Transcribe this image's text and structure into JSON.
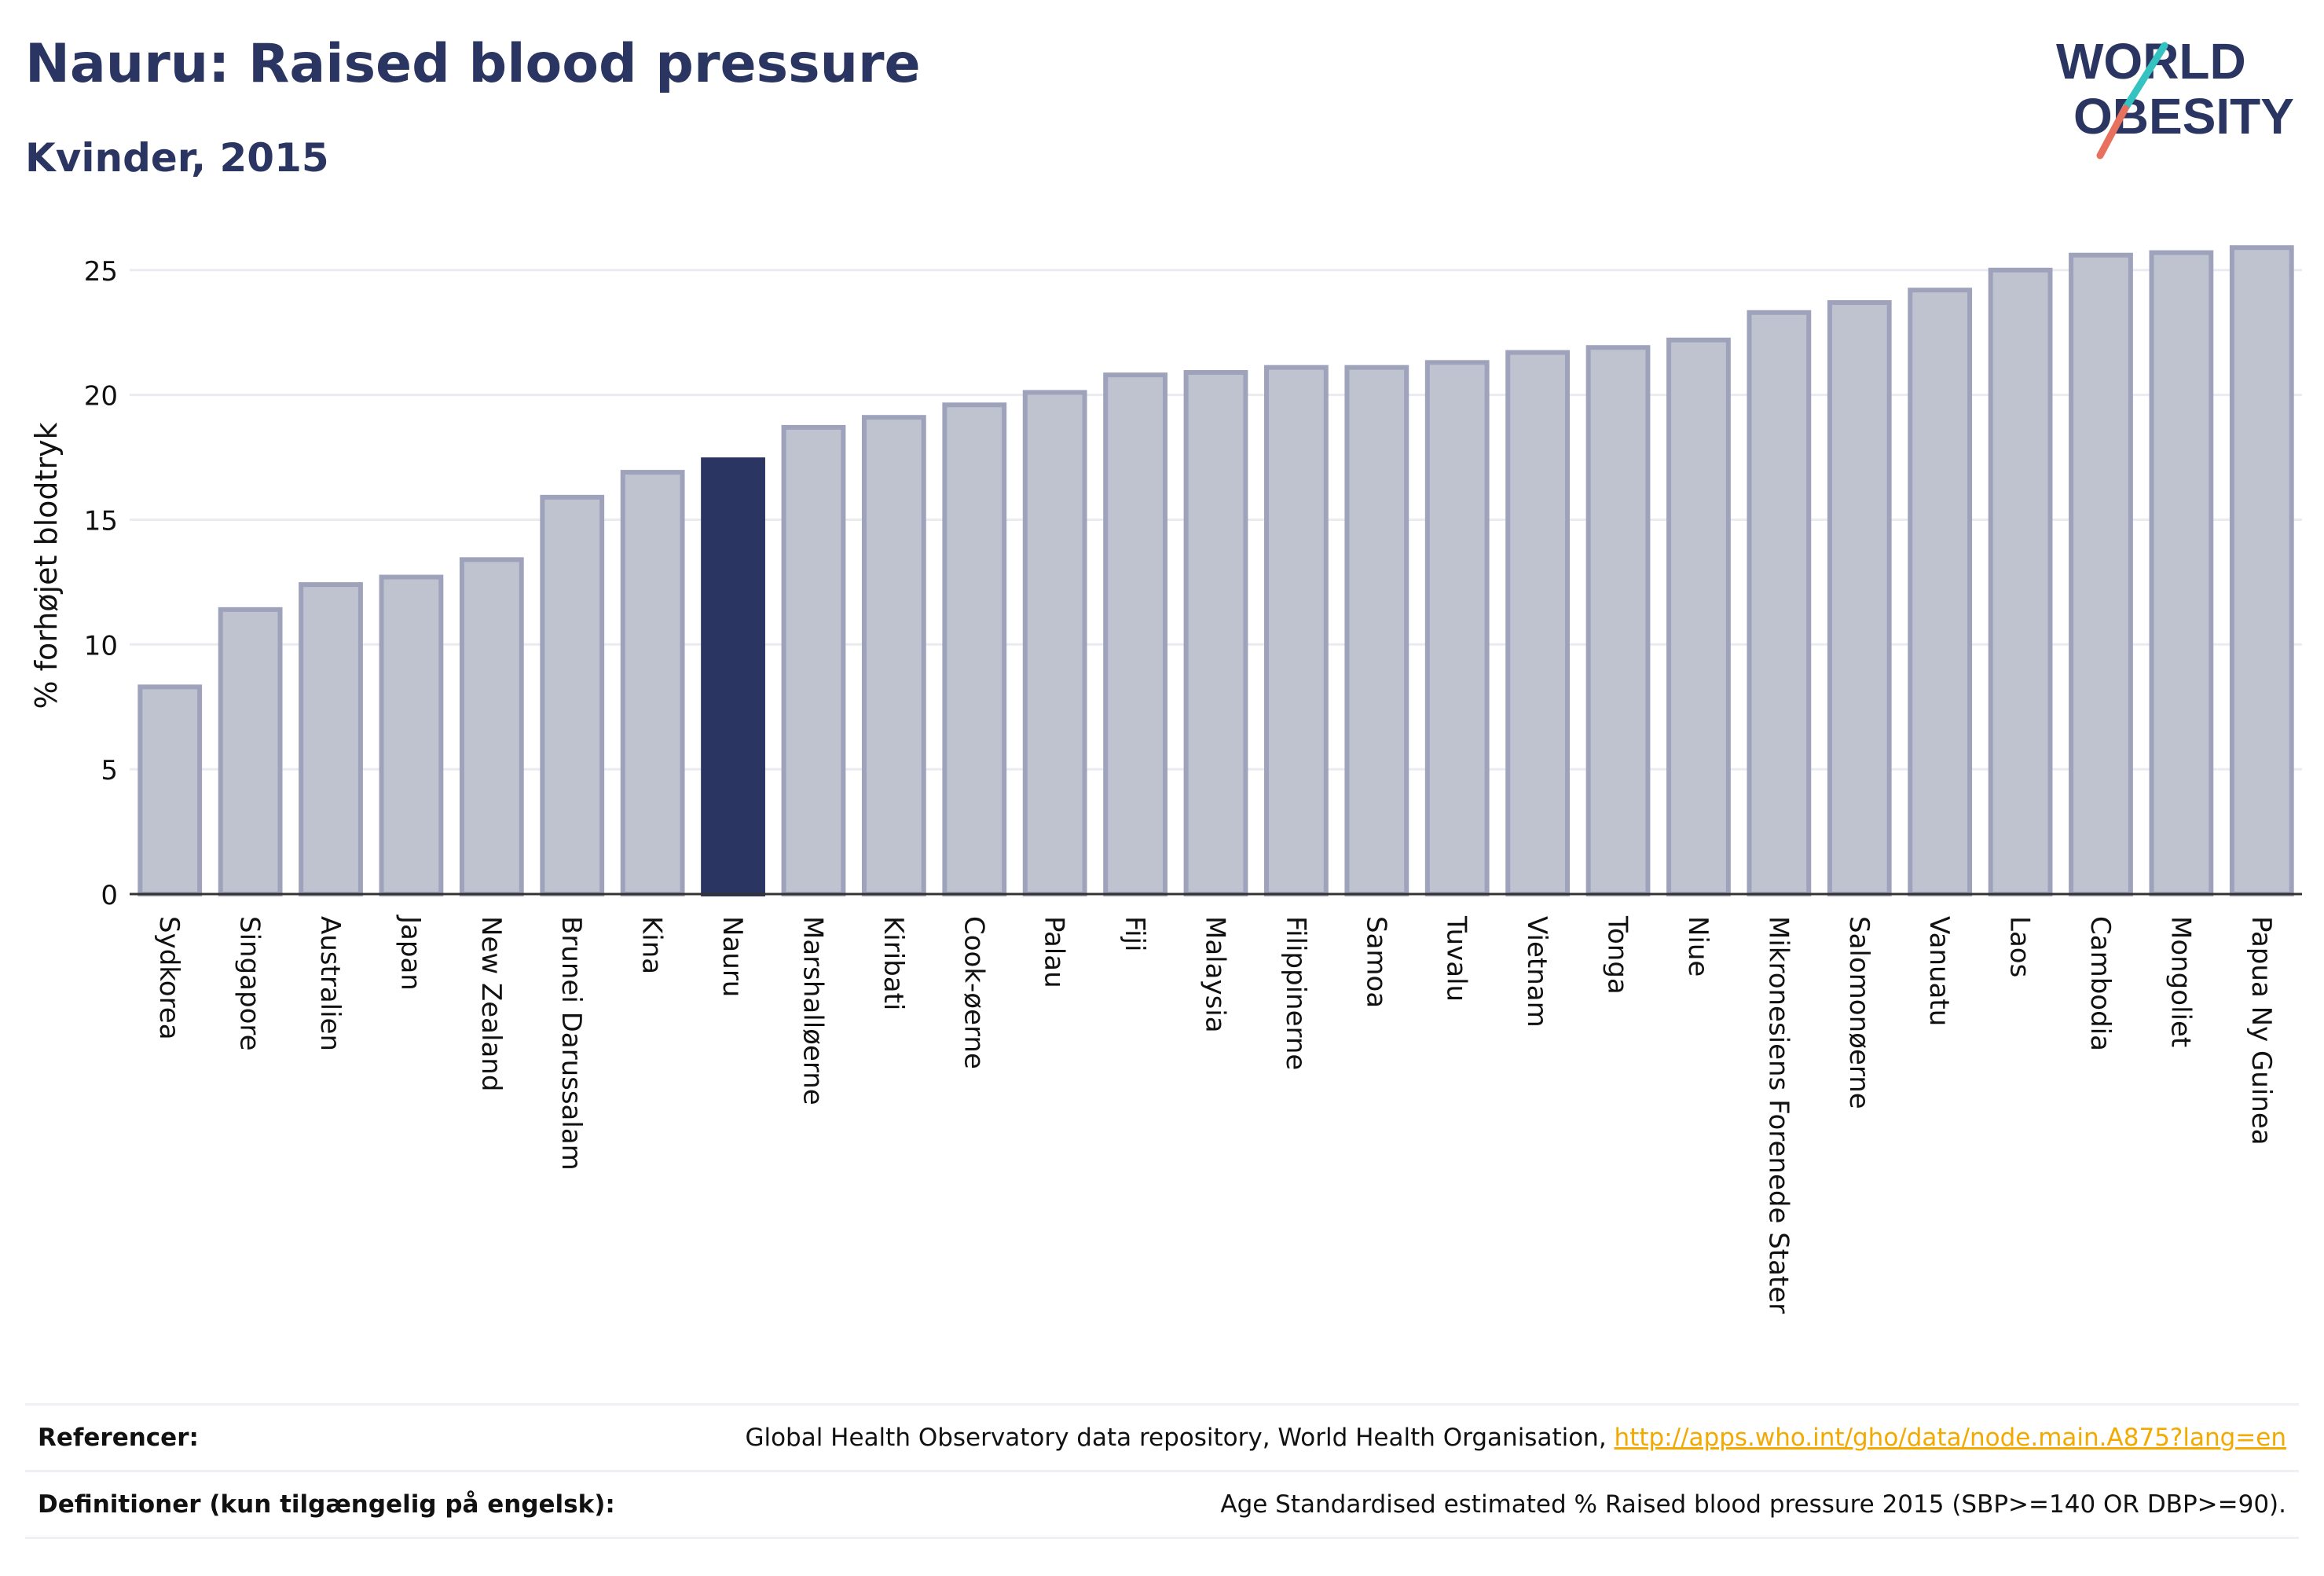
{
  "header": {
    "title": "Nauru: Raised blood pressure",
    "subtitle": "Kvinder, 2015"
  },
  "logo": {
    "line1": "WORLD",
    "line2": "OBESITY",
    "accent_colors": [
      "#35c3c1",
      "#e8705e"
    ]
  },
  "chart_data": {
    "type": "bar",
    "ylabel": "% forhøjet blodtryk",
    "xlabel": "",
    "ylim": [
      0,
      26
    ],
    "yticks": [
      0,
      5,
      10,
      15,
      20,
      25
    ],
    "grid": true,
    "highlight": "Nauru",
    "colors": {
      "bar": "#bfc2cf",
      "bar_border": "#9ea3bb",
      "highlight": "#2a3562"
    },
    "categories": [
      "Sydkorea",
      "Singapore",
      "Australien",
      "Japan",
      "New Zealand",
      "Brunei Darussalam",
      "Kina",
      "Nauru",
      "Marshalløerne",
      "Kiribati",
      "Cook-øerne",
      "Palau",
      "Fiji",
      "Malaysia",
      "Filippinerne",
      "Samoa",
      "Tuvalu",
      "Vietnam",
      "Tonga",
      "Niue",
      "Mikronesiens Forenede Stater",
      "Salomonøerne",
      "Vanuatu",
      "Laos",
      "Cambodia",
      "Mongoliet",
      "Papua Ny Guinea"
    ],
    "values": [
      8.3,
      11.4,
      12.4,
      12.7,
      13.4,
      15.9,
      16.9,
      17.4,
      18.7,
      19.1,
      19.6,
      20.1,
      20.8,
      20.9,
      21.1,
      21.1,
      21.3,
      21.7,
      21.9,
      22.2,
      23.3,
      23.7,
      24.2,
      25.0,
      25.6,
      25.7,
      25.9
    ]
  },
  "references": {
    "ref_label": "Referencer:",
    "ref_text": "Global Health Observatory data repository, World Health Organisation, ",
    "ref_link": "http://apps.who.int/gho/data/node.main.A875?lang=en",
    "def_label": "Definitioner (kun tilgængelig på engelsk):",
    "def_text": "Age Standardised estimated % Raised blood pressure 2015 (SBP>=140 OR DBP>=90)."
  }
}
